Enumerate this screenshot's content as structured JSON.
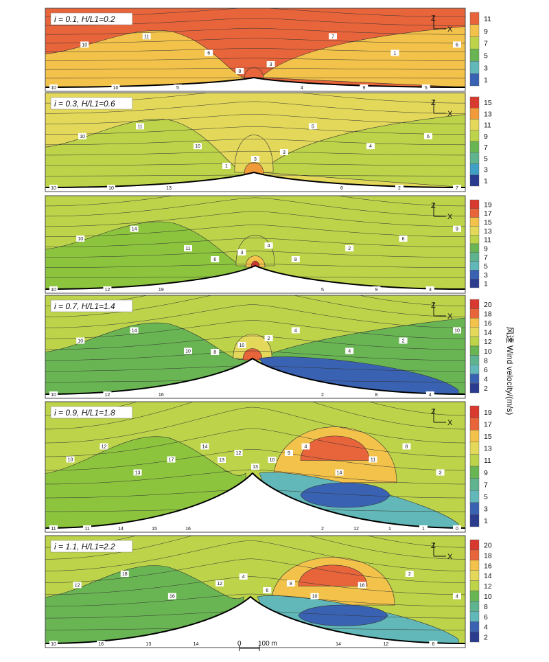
{
  "figure": {
    "ylabel": "风速 Wind velocity/(m/s)",
    "scale_bar": {
      "zero": "0",
      "label": "100 m"
    },
    "axis_z": "Z",
    "axis_x": "X"
  },
  "palette": [
    "#2b3c8f",
    "#3a62b3",
    "#3f9fc4",
    "#62b8b8",
    "#5fb38f",
    "#6ab553",
    "#8cc43e",
    "#bcd34a",
    "#e3d85a",
    "#f2c24a",
    "#f09a3a",
    "#e8643a",
    "#d83a2f"
  ],
  "chart_data": [
    {
      "type": "heatmap",
      "title": "i = 0.1, H/L1=0.2",
      "colorbar_ticks": [
        1,
        3,
        5,
        7,
        9,
        11
      ],
      "vmin": 0,
      "vmax": 12,
      "background_value": 11,
      "regions": [
        {
          "value": 9,
          "shape": "left-bowl"
        },
        {
          "value": 9,
          "shape": "right-wedge"
        },
        {
          "value": 11,
          "shape": "peak-cap"
        }
      ],
      "contour_labels": [
        "10",
        "10",
        "10",
        "11",
        "5",
        "6",
        "8",
        "3",
        "4",
        "7",
        "9",
        "1",
        "5",
        "6"
      ],
      "has_axis_icon": true
    },
    {
      "type": "heatmap",
      "title": "i = 0.3, H/L1=0.6",
      "colorbar_ticks": [
        1,
        3,
        5,
        7,
        9,
        11,
        13,
        15
      ],
      "vmin": 0,
      "vmax": 16,
      "background_value": 10,
      "regions": [
        {
          "value": 9,
          "shape": "left-bowl"
        },
        {
          "value": 9,
          "shape": "right-wedge"
        },
        {
          "value": 11,
          "shape": "peak-dome"
        },
        {
          "value": 13,
          "shape": "peak-cap"
        }
      ],
      "contour_labels": [
        "10",
        "10",
        "10",
        "11",
        "13",
        "10",
        "1",
        "3",
        "3",
        "5",
        "6",
        "4",
        "2",
        "6",
        "7"
      ],
      "has_axis_icon": true
    },
    {
      "type": "heatmap",
      "title": "",
      "colorbar_ticks": [
        1,
        3,
        5,
        7,
        9,
        11,
        13,
        15,
        17,
        19
      ],
      "vmin": 0,
      "vmax": 20,
      "background_value": 11,
      "regions": [
        {
          "value": 10,
          "shape": "left-bowl"
        },
        {
          "value": 12,
          "shape": "peak-dome"
        },
        {
          "value": 14,
          "shape": "peak-cap"
        },
        {
          "value": 19,
          "shape": "peak-core"
        }
      ],
      "contour_labels": [
        "10",
        "10",
        "12",
        "14",
        "19",
        "11",
        "6",
        "3",
        "4",
        "8",
        "5",
        "2",
        "9",
        "6",
        "3",
        "9"
      ],
      "has_axis_icon": true
    },
    {
      "type": "heatmap",
      "title": "i = 0.7, H/L1=1.4",
      "colorbar_ticks": [
        2,
        4,
        6,
        8,
        10,
        12,
        14,
        16,
        18,
        20
      ],
      "vmin": 1,
      "vmax": 21,
      "background_value": 12,
      "regions": [
        {
          "value": 10,
          "shape": "left-bowl"
        },
        {
          "value": 10,
          "shape": "right-wedge"
        },
        {
          "value": 14,
          "shape": "peak-dome"
        },
        {
          "value": 18,
          "shape": "peak-cap"
        },
        {
          "value": 4,
          "shape": "lee-vortex"
        }
      ],
      "contour_labels": [
        "10",
        "10",
        "12",
        "14",
        "16",
        "10",
        "8",
        "10",
        "2",
        "4",
        "2",
        "4",
        "8",
        "2",
        "4",
        "10"
      ],
      "has_axis_icon": true
    },
    {
      "type": "heatmap",
      "title": "i = 0.9, H/L1=1.8",
      "colorbar_ticks": [
        1,
        3,
        5,
        7,
        9,
        11,
        13,
        15,
        17,
        19
      ],
      "vmin": 0,
      "vmax": 20,
      "background_value": 11,
      "regions": [
        {
          "value": 10,
          "shape": "left-bowl"
        },
        {
          "value": 15,
          "shape": "upper-lobe"
        },
        {
          "value": 17,
          "shape": "upper-core"
        },
        {
          "value": 5,
          "shape": "lee-vortex"
        },
        {
          "value": 3,
          "shape": "lee-core"
        }
      ],
      "contour_labels": [
        "11",
        "10",
        "11",
        "12",
        "14",
        "13",
        "15",
        "17",
        "16",
        "14",
        "13",
        "12",
        "13",
        "10",
        "9",
        "4",
        "2",
        "14",
        "12",
        "11",
        "1",
        "8",
        "1",
        "3",
        "0"
      ],
      "has_axis_icon": true
    },
    {
      "type": "heatmap",
      "title": "i = 1.1, H/L1=2.2",
      "colorbar_ticks": [
        2,
        4,
        6,
        8,
        10,
        12,
        14,
        16,
        18,
        20
      ],
      "vmin": 1,
      "vmax": 21,
      "background_value": 12,
      "regions": [
        {
          "value": 10,
          "shape": "left-bowl"
        },
        {
          "value": 16,
          "shape": "upper-lobe"
        },
        {
          "value": 19,
          "shape": "upper-core"
        },
        {
          "value": 7,
          "shape": "lee-vortex"
        },
        {
          "value": 4,
          "shape": "lee-core"
        }
      ],
      "contour_labels": [
        "10",
        "12",
        "16",
        "18",
        "13",
        "16",
        "14",
        "12",
        "4",
        "6",
        "8",
        "10",
        "14",
        "16",
        "12",
        "2",
        "6",
        "4"
      ],
      "has_axis_icon": true
    }
  ]
}
